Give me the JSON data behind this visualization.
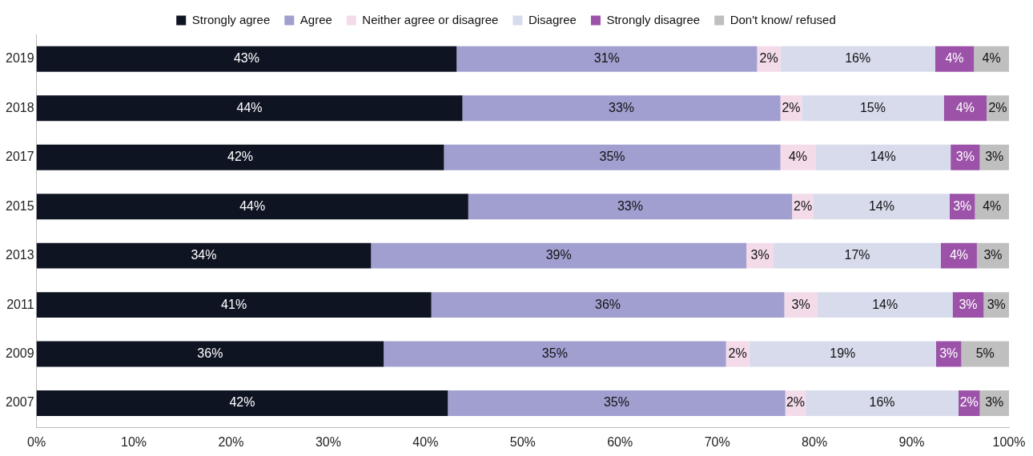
{
  "chart_data": {
    "type": "bar",
    "orientation": "horizontal",
    "stacked": true,
    "legend": "top",
    "grid": false,
    "categories": [
      "2019",
      "2018",
      "2017",
      "2015",
      "2013",
      "2011",
      "2009",
      "2007"
    ],
    "series": [
      {
        "name": "Strongly agree",
        "color": "#0f1423",
        "values": [
          43.2,
          43.8,
          41.9,
          44.4,
          34.4,
          40.6,
          35.7,
          42.3
        ],
        "value_labels": [
          "43%",
          "44%",
          "42%",
          "44%",
          "34%",
          "41%",
          "36%",
          "42%"
        ]
      },
      {
        "name": "Agree",
        "color": "#a09fd0",
        "values": [
          30.9,
          32.7,
          34.6,
          33.3,
          38.6,
          36.3,
          35.2,
          34.7
        ],
        "value_labels": [
          "31%",
          "33%",
          "35%",
          "33%",
          "39%",
          "36%",
          "35%",
          "35%"
        ]
      },
      {
        "name": "Neither agree or disagree",
        "color": "#f3dbe9",
        "values": [
          2.4,
          2.2,
          3.6,
          2.2,
          2.8,
          3.4,
          2.4,
          2.1
        ],
        "value_labels": [
          "2%",
          "2%",
          "4%",
          "2%",
          "3%",
          "3%",
          "2%",
          "2%"
        ]
      },
      {
        "name": "Disagree",
        "color": "#d7dbec",
        "values": [
          15.9,
          14.6,
          13.9,
          14.0,
          17.2,
          13.9,
          19.2,
          15.7
        ],
        "value_labels": [
          "16%",
          "15%",
          "14%",
          "14%",
          "17%",
          "14%",
          "19%",
          "16%"
        ]
      },
      {
        "name": "Strongly disagree",
        "color": "#9b52a8",
        "values": [
          4.0,
          4.4,
          3.0,
          2.6,
          3.7,
          3.2,
          2.6,
          2.2
        ],
        "value_labels": [
          "4%",
          "4%",
          "3%",
          "3%",
          "4%",
          "3%",
          "3%",
          "2%"
        ]
      },
      {
        "name": "Don't know/ refused",
        "color": "#bfbfbf",
        "values": [
          3.6,
          2.3,
          3.0,
          3.5,
          3.3,
          2.6,
          4.9,
          3.0
        ],
        "value_labels": [
          "4%",
          "2%",
          "3%",
          "4%",
          "3%",
          "3%",
          "5%",
          "3%"
        ]
      }
    ],
    "xlim": [
      0,
      100
    ],
    "xticks": [
      {
        "value": 0,
        "label": "0%"
      },
      {
        "value": 10,
        "label": "10%"
      },
      {
        "value": 20,
        "label": "20%"
      },
      {
        "value": 30,
        "label": "30%"
      },
      {
        "value": 40,
        "label": "40%"
      },
      {
        "value": 50,
        "label": "50%"
      },
      {
        "value": 60,
        "label": "60%"
      },
      {
        "value": 70,
        "label": "70%"
      },
      {
        "value": 80,
        "label": "80%"
      },
      {
        "value": 90,
        "label": "90%"
      },
      {
        "value": 100,
        "label": "100%"
      }
    ]
  }
}
